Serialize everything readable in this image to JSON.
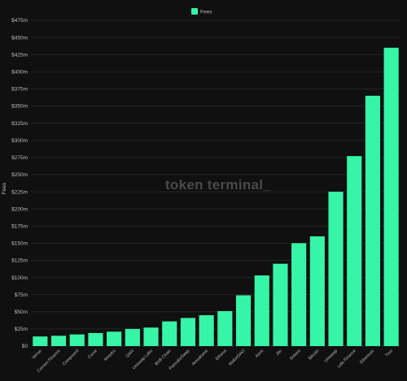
{
  "watermark": "token terminal_",
  "colors": {
    "bar": "#37f5a6",
    "background": "#101010",
    "grid": "#242424",
    "text": "#bdbdbd"
  },
  "chart_data": {
    "type": "bar",
    "categories": [
      "Venus",
      "Convex Finance",
      "Compound",
      "Curve",
      "Morpho",
      "GMX",
      "Uniswap Labs",
      "BNB Chain",
      "PancakeSwap",
      "Aerodrome",
      "Ethena",
      "MakerDAO",
      "Aave",
      "Jito",
      "Solana",
      "Bitcoin",
      "Uniswap",
      "Lido Finance",
      "Ethereum",
      "Tron"
    ],
    "series": [
      {
        "name": "Fees",
        "values": [
          14,
          15,
          17,
          19,
          21,
          25,
          27,
          36,
          41,
          45,
          51,
          74,
          103,
          120,
          150,
          160,
          225,
          277,
          365,
          435
        ]
      }
    ],
    "ylabel": "Fees",
    "ylim": [
      0,
      475
    ],
    "yticks": [
      0,
      25,
      50,
      75,
      100,
      125,
      150,
      175,
      200,
      225,
      250,
      275,
      300,
      325,
      350,
      375,
      400,
      425,
      450,
      475
    ],
    "ytick_labels": [
      "$0",
      "$25m",
      "$50m",
      "$75m",
      "$100m",
      "$125m",
      "$150m",
      "$175m",
      "$200m",
      "$225m",
      "$250m",
      "$275m",
      "$300m",
      "$325m",
      "$350m",
      "$375m",
      "$400m",
      "$425m",
      "$450m",
      "$475m"
    ],
    "legend": {
      "position": "top-center",
      "entries": [
        "Fees"
      ]
    },
    "grid": true
  }
}
